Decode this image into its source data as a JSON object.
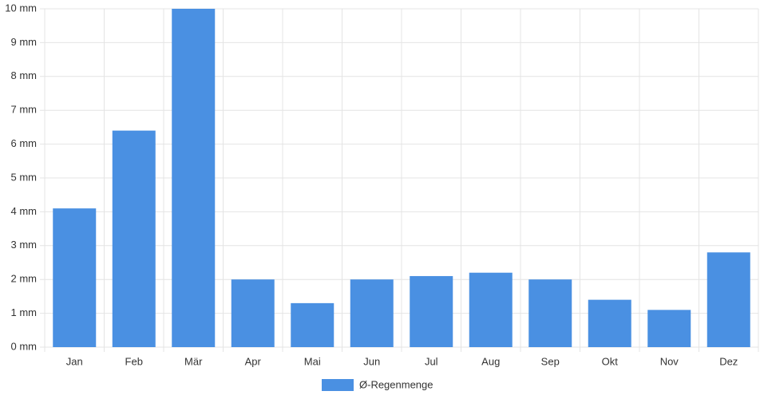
{
  "chart_data": {
    "type": "bar",
    "categories": [
      "Jan",
      "Feb",
      "Mär",
      "Apr",
      "Mai",
      "Jun",
      "Jul",
      "Aug",
      "Sep",
      "Okt",
      "Nov",
      "Dez"
    ],
    "series": [
      {
        "name": "Ø-Regenmenge",
        "color": "#4a90e2",
        "values": [
          4.1,
          6.4,
          10,
          2,
          1.3,
          2,
          2.1,
          2.2,
          2,
          1.4,
          1.1,
          2.8
        ]
      }
    ],
    "ylim": [
      0,
      10
    ],
    "yticks": [
      {
        "value": 0,
        "label": "0 mm"
      },
      {
        "value": 1,
        "label": "1 mm"
      },
      {
        "value": 2,
        "label": "2 mm"
      },
      {
        "value": 3,
        "label": "3 mm"
      },
      {
        "value": 4,
        "label": "4 mm"
      },
      {
        "value": 5,
        "label": "5 mm"
      },
      {
        "value": 6,
        "label": "6 mm"
      },
      {
        "value": 7,
        "label": "7 mm"
      },
      {
        "value": 8,
        "label": "8 mm"
      },
      {
        "value": 9,
        "label": "9 mm"
      },
      {
        "value": 10,
        "label": "10 mm"
      }
    ],
    "grid": true,
    "legend": "bottom"
  }
}
